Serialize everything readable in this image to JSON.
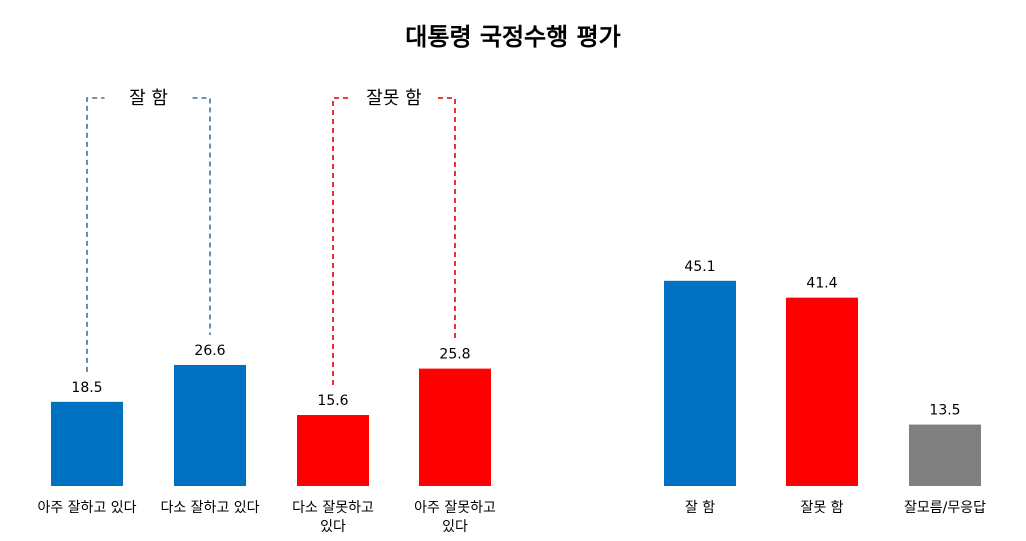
{
  "chart_data": {
    "type": "bar",
    "title": "대통령 국정수행 평가",
    "charts": [
      {
        "id": "detail",
        "categories": [
          [
            "아주 잘하고 있다"
          ],
          [
            "다소 잘하고 있다"
          ],
          [
            "다소 잘못하고",
            "있다"
          ],
          [
            "아주 잘못하고",
            "있다"
          ]
        ],
        "values": [
          18.5,
          26.6,
          15.6,
          25.8
        ],
        "value_labels": [
          "18.5",
          "26.6",
          "15.6",
          "25.8"
        ],
        "colors": [
          "#0070C0",
          "#0070C0",
          "#FF0000",
          "#FF0000"
        ],
        "groups": [
          {
            "label": "잘 함",
            "bars": [
              0,
              1
            ],
            "color": "#41719C"
          },
          {
            "label": "잘못 함",
            "bars": [
              2,
              3
            ],
            "color": "#E00000"
          }
        ]
      },
      {
        "id": "summary",
        "categories": [
          [
            "잘 함"
          ],
          [
            "잘못 함"
          ],
          [
            "잘모름/무응답"
          ]
        ],
        "values": [
          45.1,
          41.4,
          13.5
        ],
        "value_labels": [
          "45.1",
          "41.4",
          "13.5"
        ],
        "colors": [
          "#0070C0",
          "#FF0000",
          "#808080"
        ]
      }
    ],
    "ylim": [
      0,
      55
    ],
    "grid": false,
    "legend": "none"
  }
}
